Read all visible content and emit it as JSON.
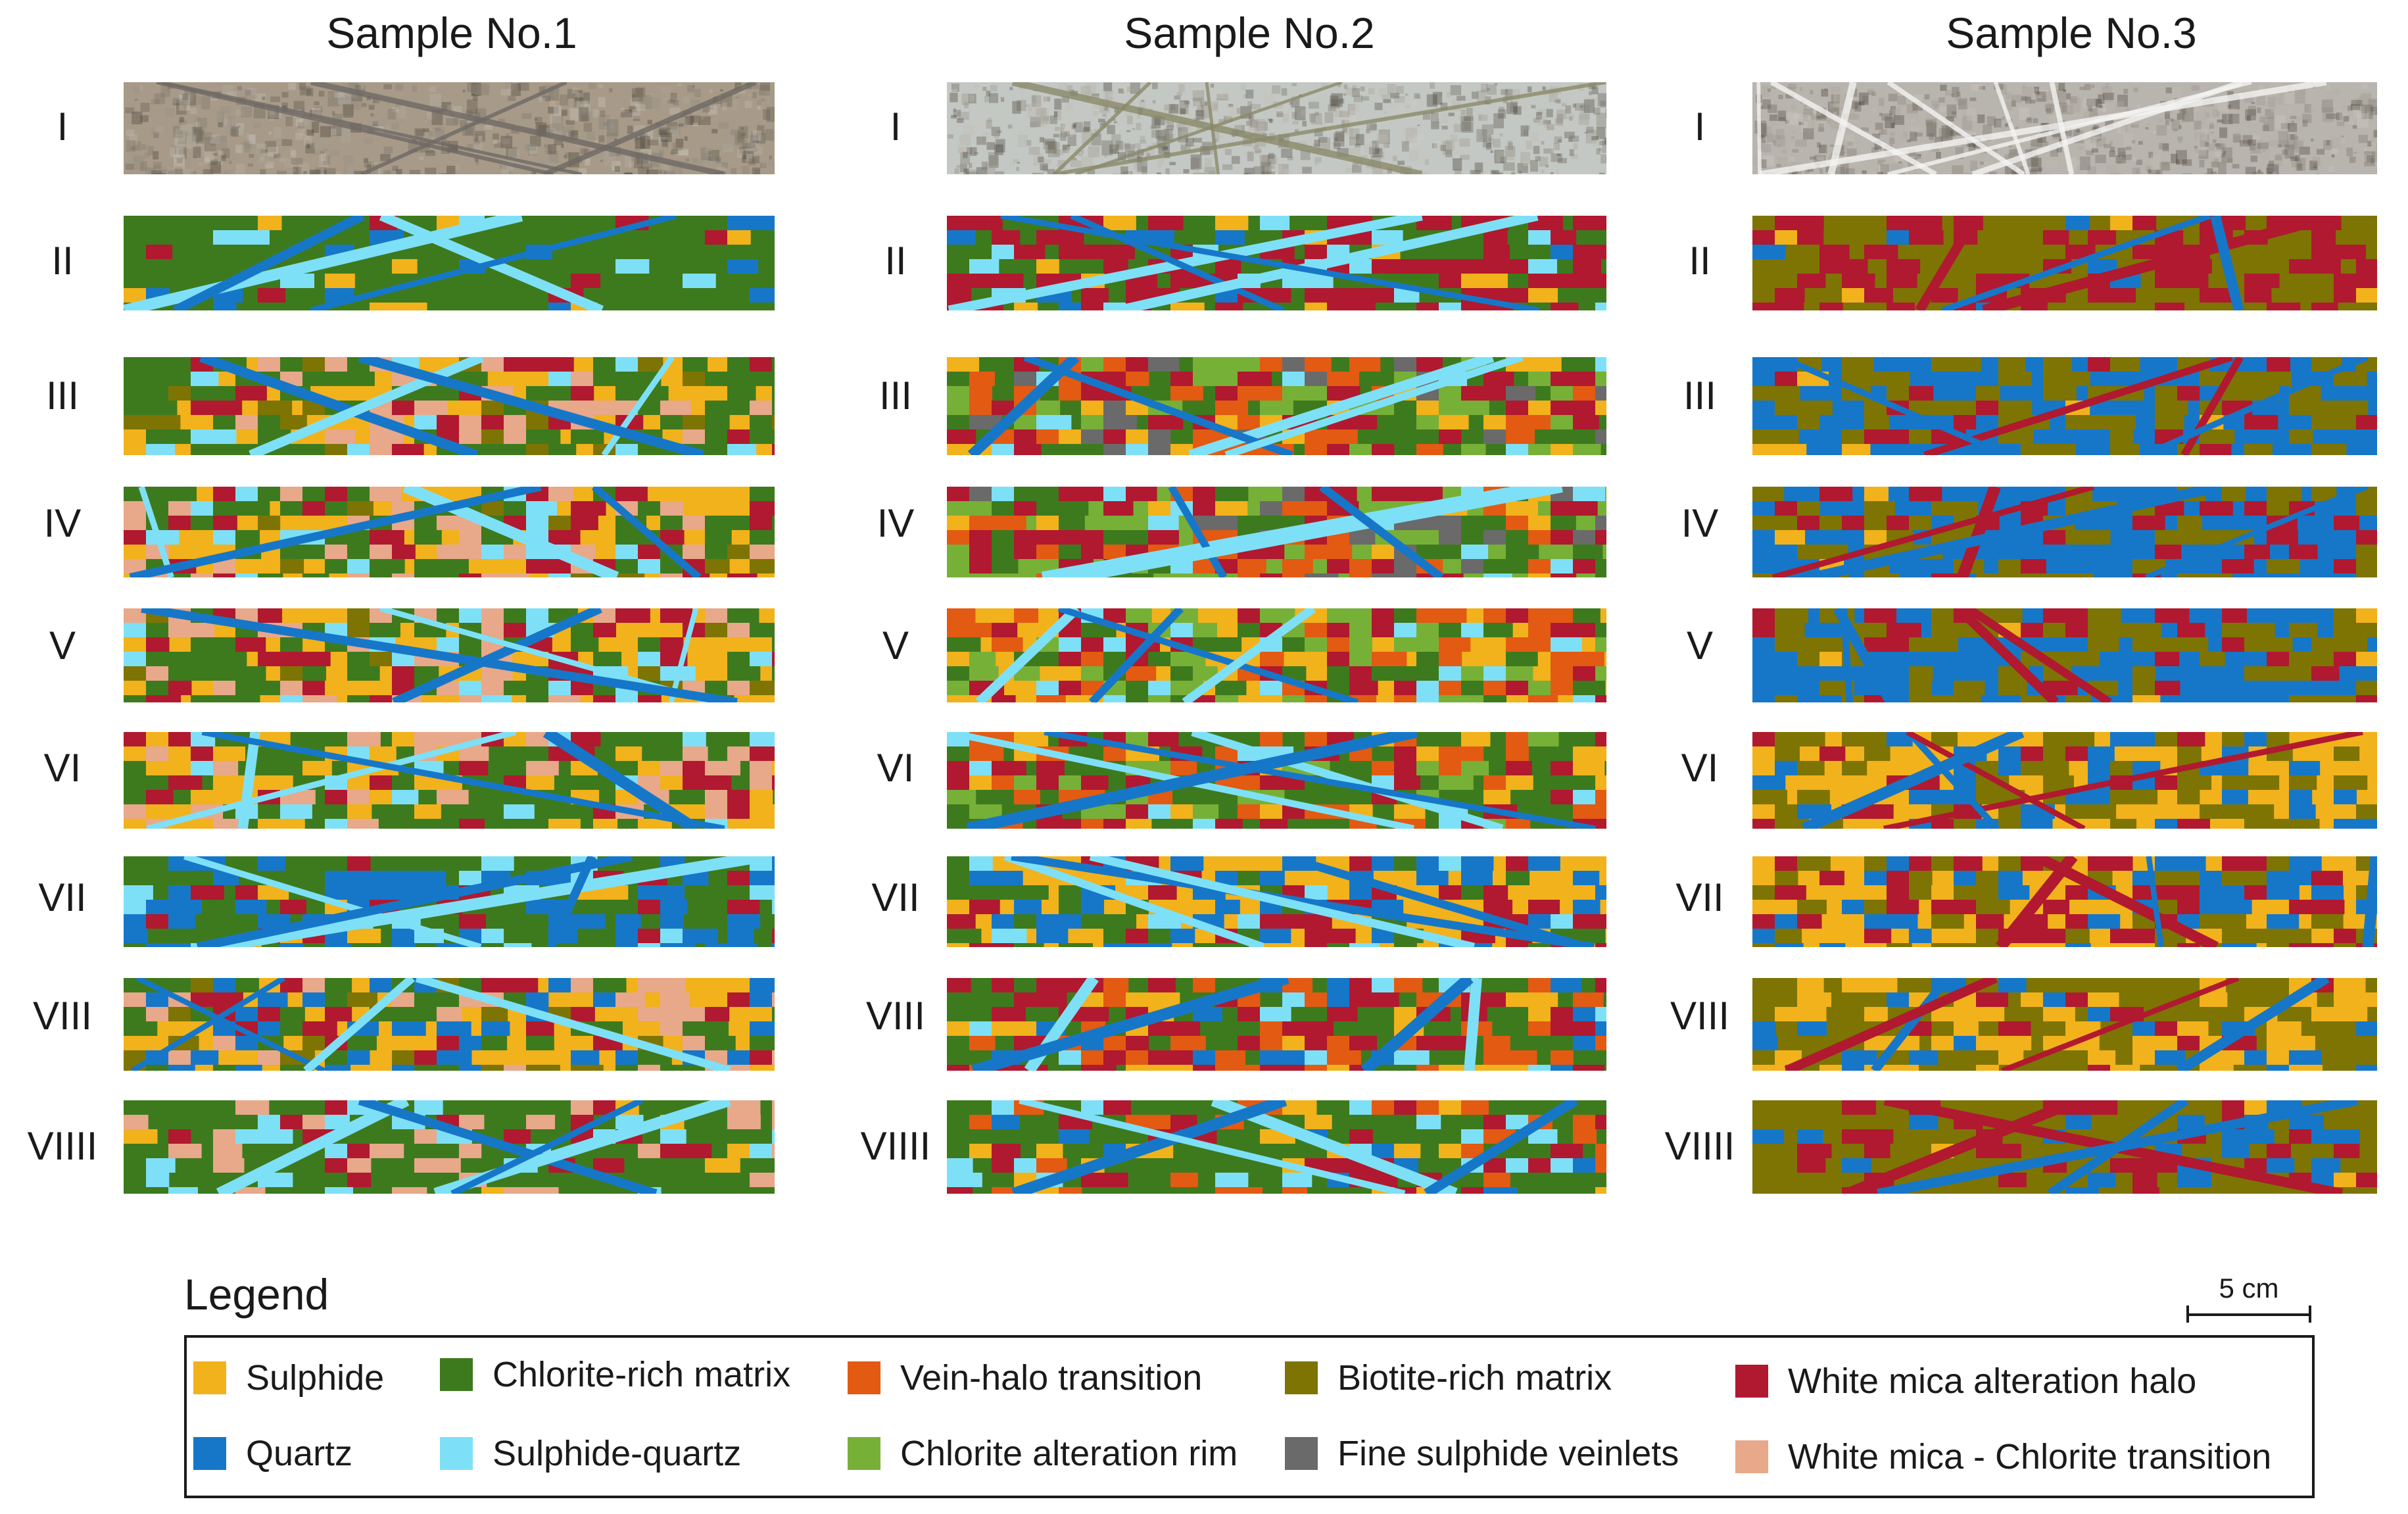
{
  "figure": {
    "columns": [
      {
        "title": "Sample No.1"
      },
      {
        "title": "Sample No.2"
      },
      {
        "title": "Sample No.3"
      }
    ],
    "rows": [
      "I",
      "II",
      "III",
      "IV",
      "V",
      "VI",
      "VII",
      "VIII",
      "VIIII"
    ],
    "row1_type": "photograph",
    "row1_photo_colors": [
      "#a89a88",
      "#c4c8c4",
      "#b8b4ae"
    ]
  },
  "legend": {
    "title": "Legend",
    "items": [
      {
        "label": "Sulphide",
        "color": "#f2b21b"
      },
      {
        "label": "Quartz",
        "color": "#1677c9"
      },
      {
        "label": "Chlorite-rich matrix",
        "color": "#3d7a1e"
      },
      {
        "label": "Sulphide-quartz",
        "color": "#7ee0f7"
      },
      {
        "label": "Vein-halo transition",
        "color": "#e35a12"
      },
      {
        "label": "Chlorite alteration rim",
        "color": "#77b037"
      },
      {
        "label": "Biotite-rich matrix",
        "color": "#7d7404"
      },
      {
        "label": "Fine sulphide veinlets",
        "color": "#6a6a6a"
      },
      {
        "label": "White mica alteration halo",
        "color": "#b0192f"
      },
      {
        "label": "White mica - Chlorite transition",
        "color": "#e8a88a"
      }
    ]
  },
  "scale_bar": {
    "label": "5 cm"
  }
}
